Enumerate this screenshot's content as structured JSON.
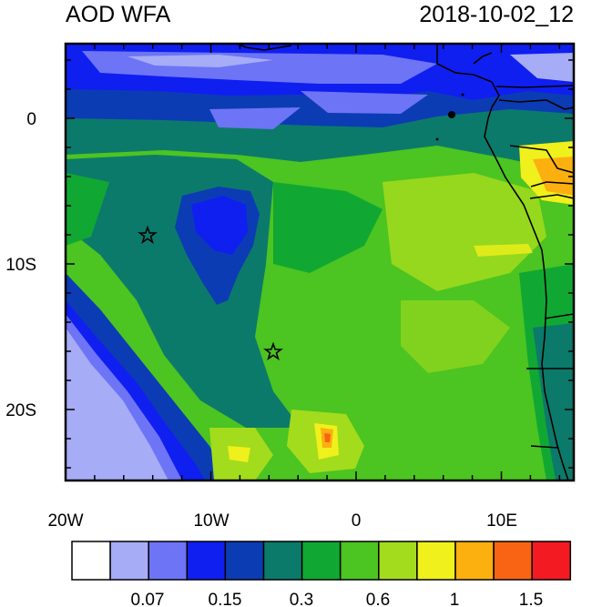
{
  "title_left": "AOD WFA",
  "title_right": "2018-10-02_12",
  "map": {
    "x_tick_labels": [
      "20W",
      "10W",
      "0",
      "10E"
    ],
    "y_tick_labels": [
      "0",
      "10S",
      "20S"
    ],
    "stations": [
      "star-marker-1",
      "star-marker-2"
    ]
  },
  "colorbar": {
    "colors": [
      "#ffffff",
      "#a6acf5",
      "#6d74f5",
      "#0f1ff0",
      "#0c3cb4",
      "#0c7a6a",
      "#10a832",
      "#4cc421",
      "#a3dc1c",
      "#f0f01c",
      "#fbb00f",
      "#f86414",
      "#f41a22"
    ],
    "labels": [
      "0.07",
      "0.15",
      "0.3",
      "0.6",
      "1",
      "1.5"
    ]
  }
}
